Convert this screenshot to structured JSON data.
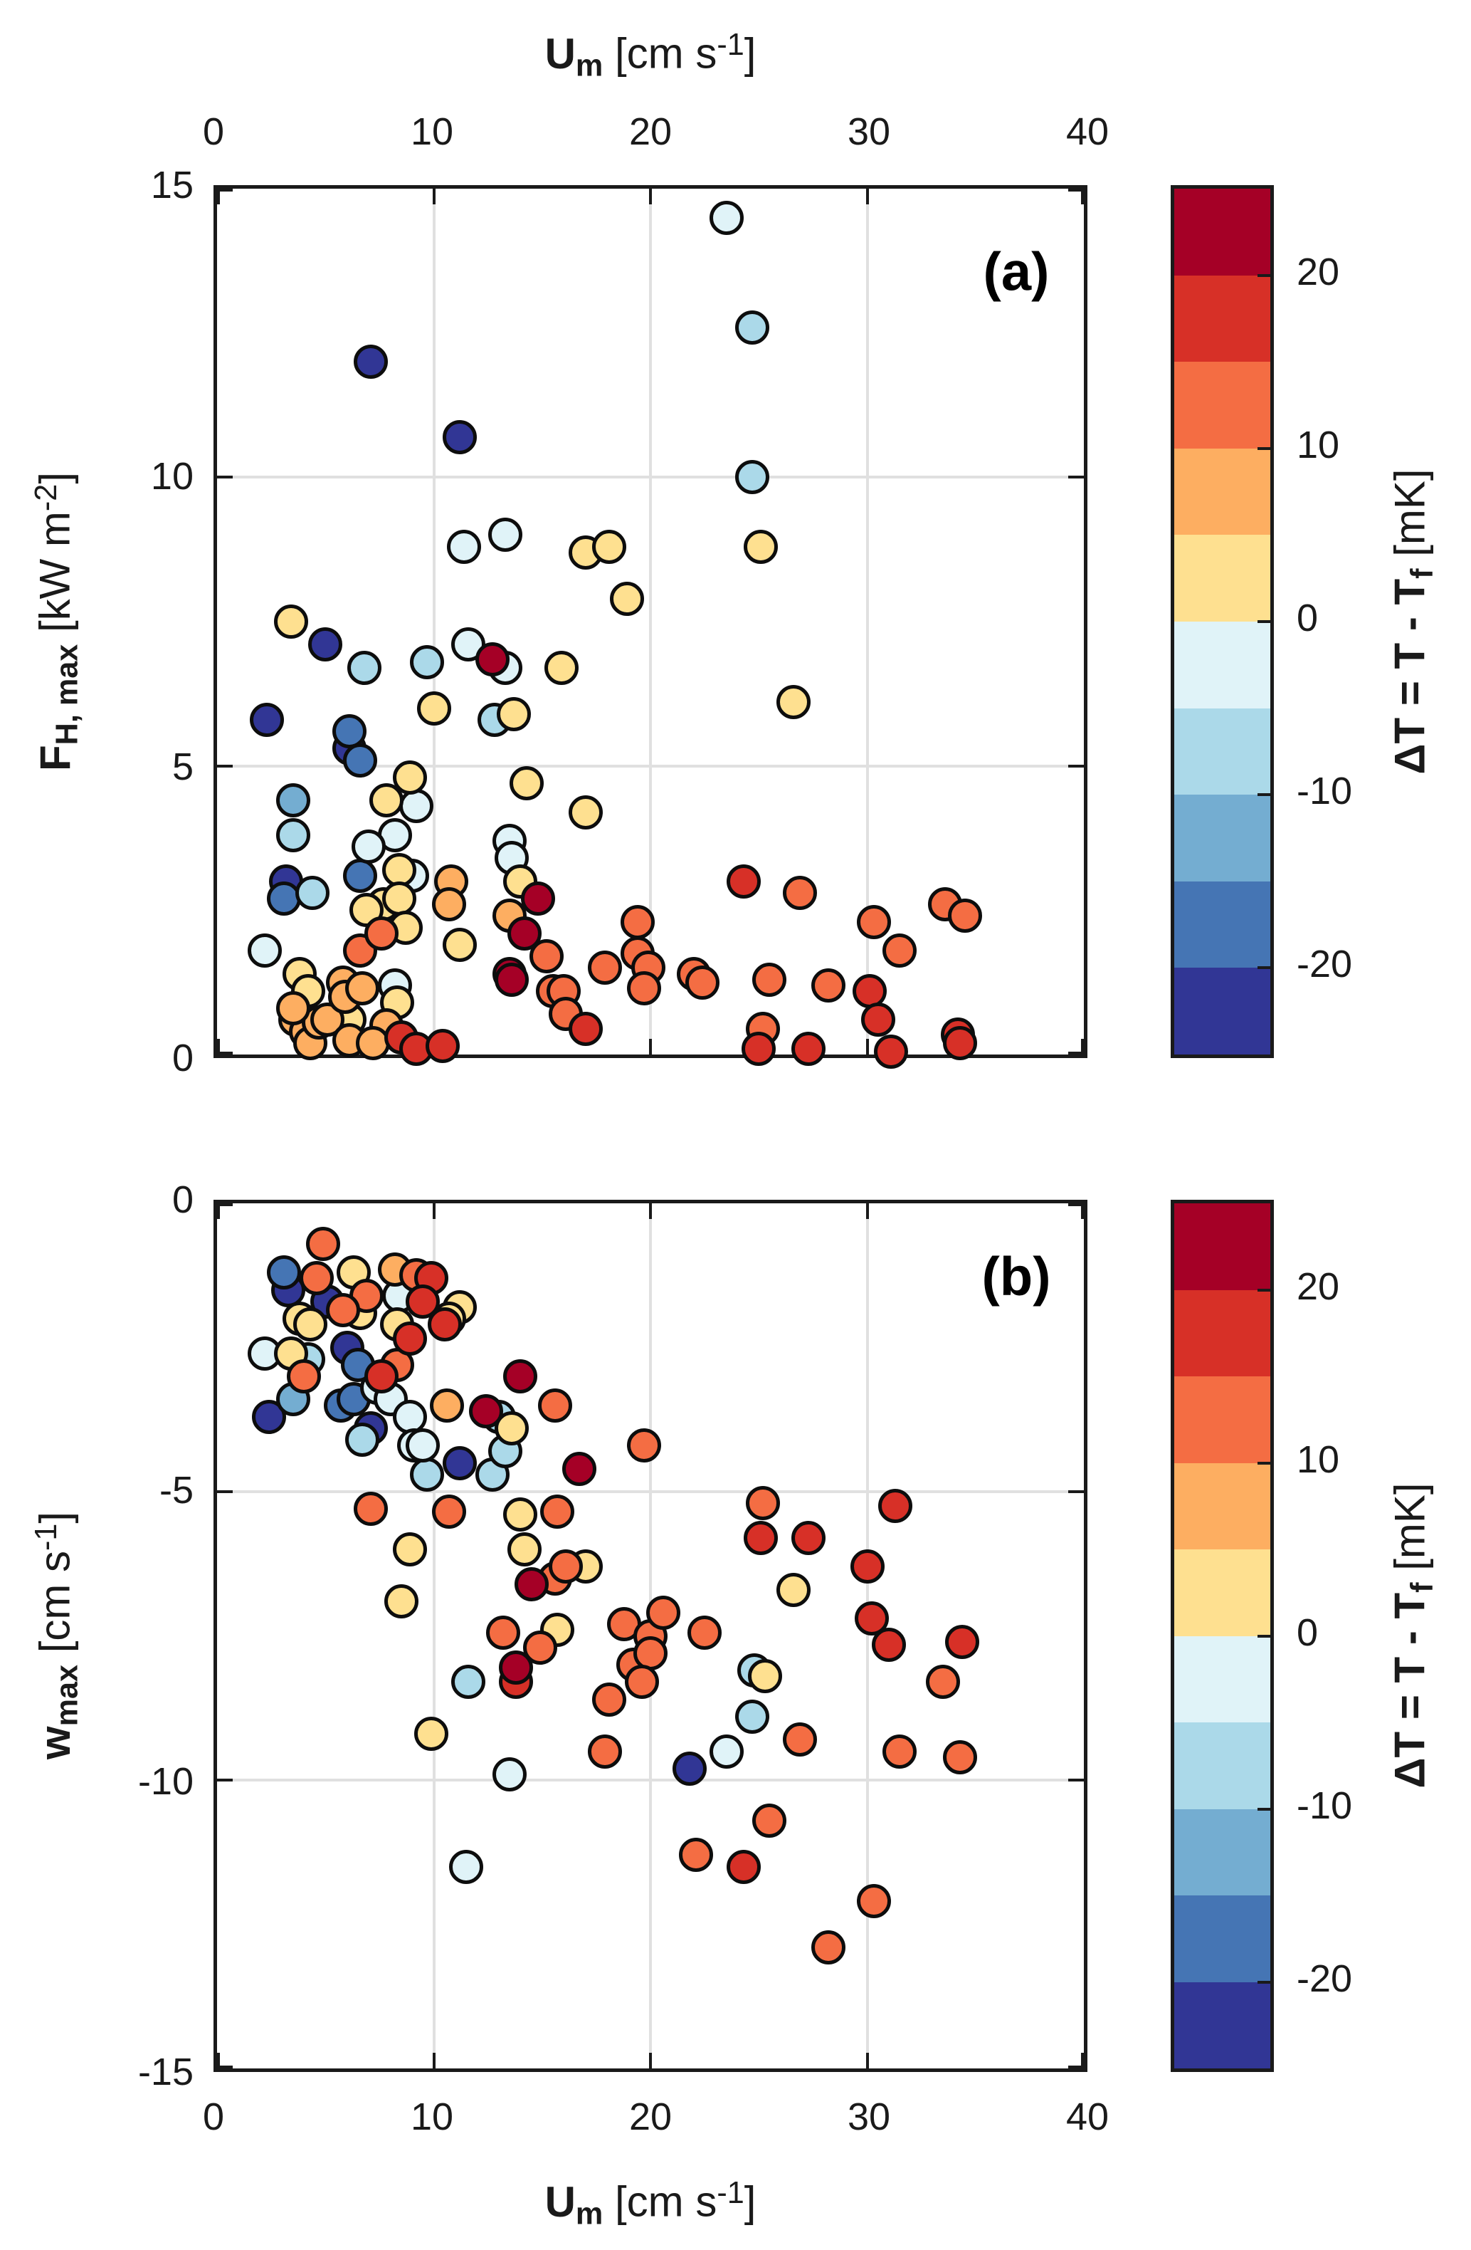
{
  "figure": {
    "top_axis_label": "**U_{m}** [cm s^{-1}]",
    "bottom_axis_label": "**U_{m}** [cm s^{-1}]",
    "colorbar_label": "**ΔT = T - T_{f}** [mK]"
  },
  "colorbar": {
    "range": [
      -25,
      25
    ],
    "ticks": [
      {
        "v": 20,
        "label": "20"
      },
      {
        "v": 10,
        "label": "10"
      },
      {
        "v": 0,
        "label": "0"
      },
      {
        "v": -10,
        "label": "-10"
      },
      {
        "v": -20,
        "label": "-20"
      }
    ],
    "bands": [
      {
        "from": 20,
        "to": 25,
        "color": "#a50026"
      },
      {
        "from": 15,
        "to": 20,
        "color": "#d73027"
      },
      {
        "from": 10,
        "to": 15,
        "color": "#f46d43"
      },
      {
        "from": 5,
        "to": 10,
        "color": "#fdae61"
      },
      {
        "from": 0,
        "to": 5,
        "color": "#fee090"
      },
      {
        "from": -5,
        "to": 0,
        "color": "#e0f3f8"
      },
      {
        "from": -10,
        "to": -5,
        "color": "#abd9e9"
      },
      {
        "from": -15,
        "to": -10,
        "color": "#74add1"
      },
      {
        "from": -20,
        "to": -15,
        "color": "#4575b4"
      },
      {
        "from": -25,
        "to": -20,
        "color": "#313695"
      }
    ]
  },
  "chart_data": [
    {
      "type": "scatter",
      "tag": "(a)",
      "xlabel": "**U_{m}** [cm s^{-1}]",
      "ylabel": "**F_{H, max}** [kW m^{-2}]",
      "color_label": "**ΔT = T - T_{f}** [mK]",
      "xlim": [
        0,
        40
      ],
      "ylim": [
        0,
        15
      ],
      "xticks": [
        {
          "v": 0,
          "label": "0"
        },
        {
          "v": 10,
          "label": "10"
        },
        {
          "v": 20,
          "label": "20"
        },
        {
          "v": 30,
          "label": "30"
        },
        {
          "v": 40,
          "label": "40"
        }
      ],
      "yticks": [
        {
          "v": 0,
          "label": "0"
        },
        {
          "v": 5,
          "label": "5"
        },
        {
          "v": 10,
          "label": "10"
        },
        {
          "v": 15,
          "label": "15"
        }
      ],
      "grid": true,
      "legend_position": "colorbar-right",
      "points": [
        [
          7.1,
          12.0,
          -22
        ],
        [
          11.2,
          10.7,
          -22
        ],
        [
          5.0,
          7.1,
          -22
        ],
        [
          2.3,
          5.8,
          -22
        ],
        [
          6.1,
          5.3,
          -22
        ],
        [
          3.2,
          3.0,
          -22
        ],
        [
          6.1,
          5.6,
          -17
        ],
        [
          6.6,
          5.1,
          -17
        ],
        [
          3.1,
          2.7,
          -17
        ],
        [
          6.6,
          3.1,
          -17
        ],
        [
          3.5,
          4.4,
          -12
        ],
        [
          6.8,
          6.7,
          -7
        ],
        [
          9.7,
          6.8,
          -7
        ],
        [
          12.8,
          5.8,
          -7
        ],
        [
          24.7,
          12.6,
          -7
        ],
        [
          24.7,
          10.0,
          -7
        ],
        [
          3.5,
          3.8,
          -7
        ],
        [
          4.4,
          2.8,
          -7
        ],
        [
          23.5,
          14.5,
          -2
        ],
        [
          11.6,
          7.1,
          -2
        ],
        [
          13.3,
          6.7,
          -2
        ],
        [
          11.4,
          8.8,
          -2
        ],
        [
          13.3,
          9.0,
          -2
        ],
        [
          9.2,
          4.3,
          -2
        ],
        [
          8.2,
          3.8,
          -2
        ],
        [
          7.0,
          3.6,
          -2
        ],
        [
          2.2,
          1.8,
          -2
        ],
        [
          13.5,
          3.7,
          -2
        ],
        [
          13.6,
          3.4,
          -2
        ],
        [
          9.0,
          3.1,
          -2
        ],
        [
          8.2,
          1.2,
          -2
        ],
        [
          3.4,
          7.5,
          2
        ],
        [
          15.9,
          6.7,
          2
        ],
        [
          10.0,
          6.0,
          2
        ],
        [
          13.7,
          5.9,
          2
        ],
        [
          26.6,
          6.1,
          2
        ],
        [
          25.1,
          8.8,
          2
        ],
        [
          17.0,
          8.7,
          2
        ],
        [
          18.1,
          8.8,
          2
        ],
        [
          18.9,
          7.9,
          2
        ],
        [
          8.9,
          4.8,
          2
        ],
        [
          7.8,
          4.4,
          2
        ],
        [
          14.3,
          4.7,
          2
        ],
        [
          17.0,
          4.2,
          2
        ],
        [
          14.0,
          3.0,
          2
        ],
        [
          8.4,
          3.2,
          2
        ],
        [
          7.7,
          2.6,
          2
        ],
        [
          8.4,
          2.7,
          2
        ],
        [
          6.9,
          2.5,
          2
        ],
        [
          8.7,
          2.2,
          2
        ],
        [
          11.2,
          1.9,
          2
        ],
        [
          3.8,
          1.4,
          2
        ],
        [
          4.2,
          1.1,
          2
        ],
        [
          8.3,
          0.9,
          2
        ],
        [
          6.1,
          0.6,
          2
        ],
        [
          10.8,
          3.0,
          7
        ],
        [
          10.7,
          2.6,
          7
        ],
        [
          13.5,
          2.4,
          7
        ],
        [
          3.6,
          0.6,
          7
        ],
        [
          4.1,
          0.4,
          7
        ],
        [
          4.3,
          0.2,
          7
        ],
        [
          4.7,
          0.55,
          7
        ],
        [
          5.1,
          0.6,
          7
        ],
        [
          5.8,
          1.25,
          7
        ],
        [
          5.9,
          1.0,
          7
        ],
        [
          6.7,
          1.15,
          7
        ],
        [
          7.8,
          0.5,
          7
        ],
        [
          6.1,
          0.25,
          7
        ],
        [
          7.2,
          0.2,
          7
        ],
        [
          3.5,
          0.8,
          7
        ],
        [
          6.6,
          1.8,
          12
        ],
        [
          7.6,
          2.1,
          12
        ],
        [
          15.2,
          1.7,
          12
        ],
        [
          15.5,
          1.1,
          12
        ],
        [
          16.0,
          1.1,
          12
        ],
        [
          17.9,
          1.5,
          12
        ],
        [
          19.4,
          2.3,
          12
        ],
        [
          16.1,
          0.7,
          12
        ],
        [
          19.4,
          1.75,
          12
        ],
        [
          19.9,
          1.5,
          12
        ],
        [
          19.7,
          1.15,
          12
        ],
        [
          22.0,
          1.4,
          12
        ],
        [
          22.4,
          1.25,
          12
        ],
        [
          25.5,
          1.3,
          12
        ],
        [
          28.2,
          1.2,
          12
        ],
        [
          25.2,
          0.45,
          12
        ],
        [
          26.9,
          2.8,
          12
        ],
        [
          30.3,
          2.3,
          12
        ],
        [
          33.6,
          2.6,
          12
        ],
        [
          34.5,
          2.4,
          12
        ],
        [
          31.5,
          1.8,
          12
        ],
        [
          8.5,
          0.3,
          17
        ],
        [
          9.2,
          0.1,
          17
        ],
        [
          10.4,
          0.15,
          17
        ],
        [
          17.0,
          0.45,
          17
        ],
        [
          24.3,
          3.0,
          17
        ],
        [
          34.2,
          0.35,
          17
        ],
        [
          25.0,
          0.1,
          17
        ],
        [
          27.3,
          0.1,
          17
        ],
        [
          31.1,
          0.05,
          17
        ],
        [
          34.3,
          0.2,
          17
        ],
        [
          30.1,
          1.1,
          17
        ],
        [
          30.5,
          0.6,
          17
        ],
        [
          12.7,
          6.85,
          22
        ],
        [
          14.8,
          2.7,
          22
        ],
        [
          14.2,
          2.1,
          22
        ],
        [
          13.5,
          1.4,
          22
        ],
        [
          13.6,
          1.3,
          22
        ]
      ]
    },
    {
      "type": "scatter",
      "tag": "(b)",
      "xlabel": "**U_{m}** [cm s^{-1}]",
      "ylabel": "**w_{max}** [cm s^{-1}]",
      "color_label": "**ΔT = T - T_{f}** [mK]",
      "xlim": [
        0,
        40
      ],
      "ylim": [
        -15,
        0
      ],
      "xticks": [
        {
          "v": 0,
          "label": "0"
        },
        {
          "v": 10,
          "label": "10"
        },
        {
          "v": 20,
          "label": "20"
        },
        {
          "v": 30,
          "label": "30"
        },
        {
          "v": 40,
          "label": "40"
        }
      ],
      "yticks": [
        {
          "v": 0,
          "label": "0"
        },
        {
          "v": -5,
          "label": "-5"
        },
        {
          "v": -10,
          "label": "-10"
        },
        {
          "v": -15,
          "label": "-15"
        }
      ],
      "grid": true,
      "legend_position": "colorbar-right",
      "points": [
        [
          3.3,
          -1.5,
          -22
        ],
        [
          5.1,
          -1.7,
          -22
        ],
        [
          6.0,
          -2.5,
          -22
        ],
        [
          2.4,
          -3.7,
          -22
        ],
        [
          7.1,
          -3.9,
          -22
        ],
        [
          11.2,
          -4.5,
          -22
        ],
        [
          21.8,
          -9.8,
          -22
        ],
        [
          3.1,
          -1.2,
          -17
        ],
        [
          6.5,
          -2.8,
          -17
        ],
        [
          5.7,
          -3.5,
          -17
        ],
        [
          6.3,
          -3.4,
          -17
        ],
        [
          3.5,
          -3.4,
          -12
        ],
        [
          4.2,
          -2.7,
          -7
        ],
        [
          6.7,
          -4.1,
          -7
        ],
        [
          9.7,
          -4.7,
          -7
        ],
        [
          12.7,
          -4.7,
          -7
        ],
        [
          13.0,
          -3.7,
          -7
        ],
        [
          13.3,
          -4.3,
          -7
        ],
        [
          24.8,
          -8.1,
          -7
        ],
        [
          24.7,
          -8.9,
          -7
        ],
        [
          11.6,
          -8.3,
          -7
        ],
        [
          2.2,
          -2.6,
          -2
        ],
        [
          8.4,
          -1.6,
          -2
        ],
        [
          7.4,
          -3.2,
          -2
        ],
        [
          8.0,
          -3.4,
          -2
        ],
        [
          8.9,
          -3.7,
          -2
        ],
        [
          9.1,
          -4.2,
          -2
        ],
        [
          9.5,
          -4.2,
          -2
        ],
        [
          23.5,
          -9.5,
          -2
        ],
        [
          11.5,
          -11.5,
          -2
        ],
        [
          13.5,
          -9.9,
          -2
        ],
        [
          6.3,
          -1.2,
          2
        ],
        [
          3.8,
          -2.0,
          2
        ],
        [
          4.3,
          -2.1,
          2
        ],
        [
          3.4,
          -2.6,
          2
        ],
        [
          6.6,
          -1.9,
          2
        ],
        [
          8.3,
          -2.1,
          2
        ],
        [
          11.2,
          -1.8,
          2
        ],
        [
          10.7,
          -2.0,
          2
        ],
        [
          13.6,
          -3.9,
          2
        ],
        [
          14.0,
          -5.4,
          2
        ],
        [
          14.2,
          -6.0,
          2
        ],
        [
          8.9,
          -6.0,
          2
        ],
        [
          8.5,
          -6.9,
          2
        ],
        [
          17.0,
          -6.3,
          2
        ],
        [
          26.6,
          -6.7,
          2
        ],
        [
          15.7,
          -7.4,
          2
        ],
        [
          25.3,
          -8.2,
          2
        ],
        [
          9.9,
          -9.2,
          2
        ],
        [
          10.6,
          -3.5,
          7
        ],
        [
          8.2,
          -1.15,
          7
        ],
        [
          4.9,
          -0.7,
          12
        ],
        [
          4.6,
          -1.3,
          12
        ],
        [
          6.9,
          -1.6,
          12
        ],
        [
          9.2,
          -1.25,
          12
        ],
        [
          5.8,
          -1.85,
          12
        ],
        [
          8.3,
          -2.8,
          12
        ],
        [
          4.0,
          -3.0,
          12
        ],
        [
          15.6,
          -3.5,
          12
        ],
        [
          19.7,
          -4.2,
          12
        ],
        [
          7.1,
          -5.3,
          12
        ],
        [
          10.7,
          -5.35,
          12
        ],
        [
          15.7,
          -5.35,
          12
        ],
        [
          25.2,
          -5.2,
          12
        ],
        [
          15.6,
          -6.5,
          12
        ],
        [
          16.1,
          -6.3,
          12
        ],
        [
          13.2,
          -7.45,
          12
        ],
        [
          14.9,
          -7.7,
          12
        ],
        [
          18.8,
          -7.3,
          12
        ],
        [
          20.0,
          -7.5,
          12
        ],
        [
          20.6,
          -7.1,
          12
        ],
        [
          22.5,
          -7.45,
          12
        ],
        [
          19.2,
          -8.0,
          12
        ],
        [
          20.0,
          -7.8,
          12
        ],
        [
          19.6,
          -8.3,
          12
        ],
        [
          18.1,
          -8.6,
          12
        ],
        [
          33.5,
          -8.3,
          12
        ],
        [
          26.9,
          -9.3,
          12
        ],
        [
          31.5,
          -9.5,
          12
        ],
        [
          34.3,
          -9.6,
          12
        ],
        [
          17.9,
          -9.5,
          12
        ],
        [
          25.5,
          -10.7,
          12
        ],
        [
          22.1,
          -11.3,
          12
        ],
        [
          30.3,
          -12.1,
          12
        ],
        [
          28.2,
          -12.9,
          12
        ],
        [
          9.9,
          -1.3,
          17
        ],
        [
          9.5,
          -1.7,
          17
        ],
        [
          10.5,
          -2.1,
          17
        ],
        [
          8.9,
          -2.35,
          17
        ],
        [
          7.6,
          -3.0,
          17
        ],
        [
          31.3,
          -5.25,
          17
        ],
        [
          25.1,
          -5.8,
          17
        ],
        [
          27.3,
          -5.8,
          17
        ],
        [
          30.0,
          -6.3,
          17
        ],
        [
          30.2,
          -7.2,
          17
        ],
        [
          31.0,
          -7.65,
          17
        ],
        [
          34.4,
          -7.6,
          17
        ],
        [
          13.8,
          -8.3,
          17
        ],
        [
          24.3,
          -11.5,
          17
        ],
        [
          14.0,
          -3.0,
          22
        ],
        [
          12.4,
          -3.6,
          22
        ],
        [
          16.7,
          -4.6,
          22
        ],
        [
          14.5,
          -6.6,
          22
        ],
        [
          13.8,
          -8.05,
          22
        ]
      ]
    }
  ]
}
